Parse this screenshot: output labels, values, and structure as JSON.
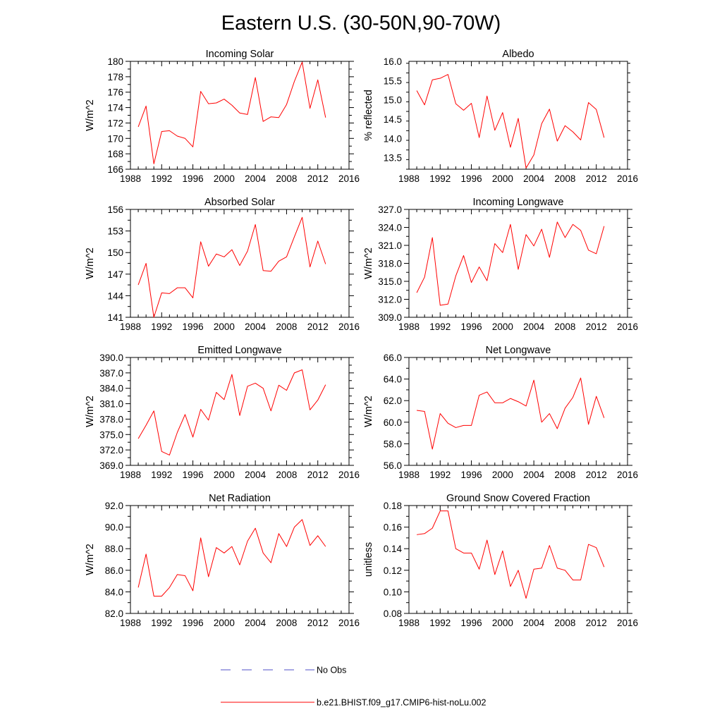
{
  "figure": {
    "title": "Eastern U.S. (30-50N,90-70W)"
  },
  "legend": [
    {
      "label": "No Obs",
      "color": "#5050c8",
      "dash": true
    },
    {
      "label": "b.e21.BHIST.f09_g17.CMIP6-hist-noLu.002",
      "color": "#ff0000",
      "dash": false
    }
  ],
  "colors": {
    "model_line": "#ff0000",
    "obs_line": "#5050c8"
  },
  "chart_data": [
    {
      "type": "line",
      "title": "Incoming Solar",
      "ylabel": "W/m^2",
      "xlim": [
        1988,
        2016
      ],
      "xticks": [
        1988,
        1992,
        1996,
        2000,
        2004,
        2008,
        2012,
        2016
      ],
      "ylim": [
        166,
        180
      ],
      "yticks": [
        166,
        168,
        170,
        172,
        174,
        176,
        178,
        180
      ],
      "ytick_decimals": 0,
      "x": [
        1989,
        1990,
        1991,
        1992,
        1993,
        1994,
        1995,
        1996,
        1997,
        1998,
        1999,
        2000,
        2001,
        2002,
        2003,
        2004,
        2005,
        2006,
        2007,
        2008,
        2009,
        2010,
        2011,
        2012,
        2013
      ],
      "series": [
        {
          "name": "b.e21.BHIST.f09_g17.CMIP6-hist-noLu.002",
          "values": [
            171.5,
            174.2,
            166.7,
            170.9,
            171.0,
            170.3,
            170.0,
            168.9,
            176.1,
            174.5,
            174.6,
            175.1,
            174.3,
            173.3,
            173.1,
            177.9,
            172.2,
            172.8,
            172.7,
            174.4,
            177.4,
            179.9,
            173.9,
            177.6,
            172.7
          ]
        }
      ]
    },
    {
      "type": "line",
      "title": "Albedo",
      "ylabel": "% reflected",
      "xlim": [
        1988,
        2016
      ],
      "xticks": [
        1988,
        1992,
        1996,
        2000,
        2004,
        2008,
        2012,
        2016
      ],
      "ylim": [
        13.2,
        16.0
      ],
      "yticks": [
        13.5,
        14.0,
        14.5,
        15.0,
        15.5,
        16.0
      ],
      "ytick_decimals": 1,
      "x": [
        1989,
        1990,
        1991,
        1992,
        1993,
        1994,
        1995,
        1996,
        1997,
        1998,
        1999,
        2000,
        2001,
        2002,
        2003,
        2004,
        2005,
        2006,
        2007,
        2008,
        2009,
        2010,
        2011,
        2012,
        2013
      ],
      "series": [
        {
          "name": "b.e21.BHIST.f09_g17.CMIP6-hist-noLu.002",
          "values": [
            15.24,
            14.87,
            15.52,
            15.56,
            15.66,
            14.9,
            14.73,
            14.91,
            14.02,
            15.1,
            14.21,
            14.67,
            13.77,
            14.52,
            13.23,
            13.57,
            14.38,
            14.76,
            13.93,
            14.33,
            14.17,
            13.96,
            14.93,
            14.75,
            14.02
          ]
        }
      ]
    },
    {
      "type": "line",
      "title": "Absorbed Solar",
      "ylabel": "W/m^2",
      "xlim": [
        1988,
        2016
      ],
      "xticks": [
        1988,
        1992,
        1996,
        2000,
        2004,
        2008,
        2012,
        2016
      ],
      "ylim": [
        141,
        156
      ],
      "yticks": [
        141,
        144,
        147,
        150,
        153,
        156
      ],
      "ytick_decimals": 0,
      "x": [
        1989,
        1990,
        1991,
        1992,
        1993,
        1994,
        1995,
        1996,
        1997,
        1998,
        1999,
        2000,
        2001,
        2002,
        2003,
        2004,
        2005,
        2006,
        2007,
        2008,
        2009,
        2010,
        2011,
        2012,
        2013
      ],
      "series": [
        {
          "name": "b.e21.BHIST.f09_g17.CMIP6-hist-noLu.002",
          "values": [
            145.5,
            148.5,
            141.0,
            144.4,
            144.3,
            145.1,
            145.1,
            143.7,
            151.5,
            148.1,
            149.8,
            149.4,
            150.4,
            148.2,
            150.2,
            153.9,
            147.5,
            147.4,
            148.8,
            149.4,
            152.2,
            154.9,
            148.0,
            151.6,
            148.4
          ]
        }
      ]
    },
    {
      "type": "line",
      "title": "Incoming Longwave",
      "ylabel": "W/m^2",
      "xlim": [
        1988,
        2016
      ],
      "xticks": [
        1988,
        1992,
        1996,
        2000,
        2004,
        2008,
        2012,
        2016
      ],
      "ylim": [
        309.0,
        327.0
      ],
      "yticks": [
        309.0,
        312.0,
        315.0,
        318.0,
        321.0,
        324.0,
        327.0
      ],
      "ytick_decimals": 1,
      "x": [
        1989,
        1990,
        1991,
        1992,
        1993,
        1994,
        1995,
        1996,
        1997,
        1998,
        1999,
        2000,
        2001,
        2002,
        2003,
        2004,
        2005,
        2006,
        2007,
        2008,
        2009,
        2010,
        2011,
        2012,
        2013
      ],
      "series": [
        {
          "name": "b.e21.BHIST.f09_g17.CMIP6-hist-noLu.002",
          "values": [
            313.1,
            315.7,
            322.3,
            311.0,
            311.2,
            315.9,
            319.3,
            314.8,
            317.4,
            315.1,
            321.3,
            319.8,
            324.5,
            317.0,
            322.8,
            320.9,
            323.7,
            319.0,
            324.9,
            322.3,
            324.5,
            323.5,
            320.2,
            319.6,
            324.2
          ]
        }
      ]
    },
    {
      "type": "line",
      "title": "Emitted Longwave",
      "ylabel": "W/m^2",
      "xlim": [
        1988,
        2016
      ],
      "xticks": [
        1988,
        1992,
        1996,
        2000,
        2004,
        2008,
        2012,
        2016
      ],
      "ylim": [
        369.0,
        390.0
      ],
      "yticks": [
        369.0,
        372.0,
        375.0,
        378.0,
        381.0,
        384.0,
        387.0,
        390.0
      ],
      "ytick_decimals": 1,
      "x": [
        1989,
        1990,
        1991,
        1992,
        1993,
        1994,
        1995,
        1996,
        1997,
        1998,
        1999,
        2000,
        2001,
        2002,
        2003,
        2004,
        2005,
        2006,
        2007,
        2008,
        2009,
        2010,
        2011,
        2012,
        2013
      ],
      "series": [
        {
          "name": "b.e21.BHIST.f09_g17.CMIP6-hist-noLu.002",
          "values": [
            374.2,
            376.8,
            379.6,
            371.7,
            371.0,
            375.4,
            378.9,
            374.5,
            379.9,
            377.8,
            383.2,
            381.8,
            386.7,
            378.7,
            384.4,
            385.0,
            384.0,
            379.6,
            384.6,
            383.6,
            387.0,
            387.6,
            379.8,
            381.7,
            384.7
          ]
        }
      ]
    },
    {
      "type": "line",
      "title": "Net Longwave",
      "ylabel": "W/m^2",
      "xlim": [
        1988,
        2016
      ],
      "xticks": [
        1988,
        1992,
        1996,
        2000,
        2004,
        2008,
        2012,
        2016
      ],
      "ylim": [
        56.0,
        66.0
      ],
      "yticks": [
        56.0,
        58.0,
        60.0,
        62.0,
        64.0,
        66.0
      ],
      "ytick_decimals": 1,
      "x": [
        1989,
        1990,
        1991,
        1992,
        1993,
        1994,
        1995,
        1996,
        1997,
        1998,
        1999,
        2000,
        2001,
        2002,
        2003,
        2004,
        2005,
        2006,
        2007,
        2008,
        2009,
        2010,
        2011,
        2012,
        2013
      ],
      "series": [
        {
          "name": "b.e21.BHIST.f09_g17.CMIP6-hist-noLu.002",
          "values": [
            61.1,
            61.0,
            57.5,
            60.8,
            59.9,
            59.5,
            59.7,
            59.7,
            62.5,
            62.8,
            61.8,
            61.8,
            62.2,
            61.9,
            61.5,
            63.9,
            60.0,
            60.8,
            59.4,
            61.3,
            62.3,
            64.1,
            59.8,
            62.4,
            60.4
          ]
        }
      ]
    },
    {
      "type": "line",
      "title": "Net Radiation",
      "ylabel": "W/m^2",
      "xlim": [
        1988,
        2016
      ],
      "xticks": [
        1988,
        1992,
        1996,
        2000,
        2004,
        2008,
        2012,
        2016
      ],
      "ylim": [
        82.0,
        92.0
      ],
      "yticks": [
        82.0,
        84.0,
        86.0,
        88.0,
        90.0,
        92.0
      ],
      "ytick_decimals": 1,
      "x": [
        1989,
        1990,
        1991,
        1992,
        1993,
        1994,
        1995,
        1996,
        1997,
        1998,
        1999,
        2000,
        2001,
        2002,
        2003,
        2004,
        2005,
        2006,
        2007,
        2008,
        2009,
        2010,
        2011,
        2012,
        2013
      ],
      "series": [
        {
          "name": "b.e21.BHIST.f09_g17.CMIP6-hist-noLu.002",
          "values": [
            84.4,
            87.5,
            83.6,
            83.6,
            84.4,
            85.6,
            85.5,
            84.1,
            89.0,
            85.4,
            88.1,
            87.6,
            88.2,
            86.5,
            88.7,
            89.9,
            87.6,
            86.7,
            89.4,
            88.2,
            90.0,
            90.7,
            88.3,
            89.2,
            88.2
          ]
        }
      ]
    },
    {
      "type": "line",
      "title": "Ground Snow Covered Fraction",
      "ylabel": "unitless",
      "xlim": [
        1988,
        2016
      ],
      "xticks": [
        1988,
        1992,
        1996,
        2000,
        2004,
        2008,
        2012,
        2016
      ],
      "ylim": [
        0.08,
        0.18
      ],
      "yticks": [
        0.08,
        0.1,
        0.12,
        0.14,
        0.16,
        0.18
      ],
      "ytick_decimals": 2,
      "x": [
        1989,
        1990,
        1991,
        1992,
        1993,
        1994,
        1995,
        1996,
        1997,
        1998,
        1999,
        2000,
        2001,
        2002,
        2003,
        2004,
        2005,
        2006,
        2007,
        2008,
        2009,
        2010,
        2011,
        2012,
        2013
      ],
      "series": [
        {
          "name": "b.e21.BHIST.f09_g17.CMIP6-hist-noLu.002",
          "values": [
            0.153,
            0.154,
            0.159,
            0.175,
            0.175,
            0.14,
            0.136,
            0.136,
            0.121,
            0.148,
            0.116,
            0.138,
            0.105,
            0.12,
            0.094,
            0.121,
            0.122,
            0.143,
            0.122,
            0.12,
            0.111,
            0.111,
            0.144,
            0.141,
            0.123
          ]
        }
      ]
    }
  ]
}
